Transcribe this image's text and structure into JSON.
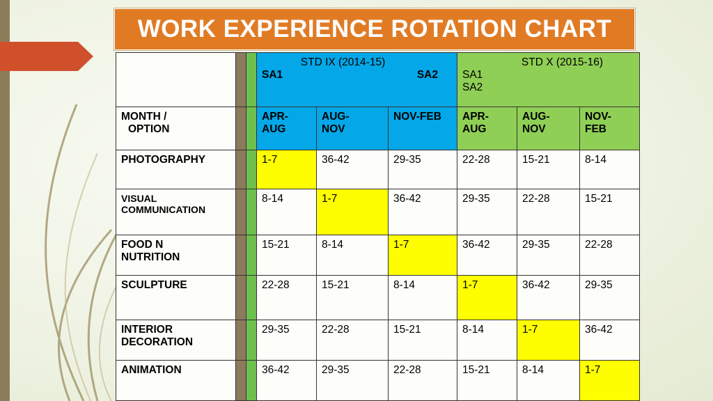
{
  "title": "WORK EXPERIENCE ROTATION CHART",
  "std_ix": {
    "heading": "STD   IX   (2014-15)",
    "sa1": "SA1",
    "sa2": "SA2"
  },
  "std_x": {
    "heading": "STD X  (2015-16)",
    "sa1": "SA1",
    "sa2": "SA2"
  },
  "month_option_line1": "MONTH  /",
  "month_option_line2": "OPTION",
  "periods": [
    [
      "APR-",
      "AUG"
    ],
    [
      "AUG-",
      "NOV"
    ],
    [
      "NOV-FEB",
      ""
    ],
    [
      "APR-",
      "AUG"
    ],
    [
      "AUG-",
      "NOV"
    ],
    [
      "NOV-",
      "FEB"
    ]
  ],
  "rows": [
    {
      "option": [
        "PHOTOGRAPHY"
      ],
      "values": [
        "1-7",
        "36-42",
        "29-35",
        "22-28",
        "15-21",
        "8-14"
      ],
      "highlight": 0
    },
    {
      "option": [
        "VISUAL",
        "COMMUNICATION"
      ],
      "values": [
        "8-14",
        "1-7",
        "36-42",
        "29-35",
        "22-28",
        "15-21"
      ],
      "highlight": 1
    },
    {
      "option": [
        "FOOD N",
        "NUTRITION"
      ],
      "values": [
        "15-21",
        "8-14",
        "1-7",
        "36-42",
        "29-35",
        "22-28"
      ],
      "highlight": 2
    },
    {
      "option": [
        "SCULPTURE"
      ],
      "values": [
        "22-28",
        "15-21",
        "8-14",
        "1-7",
        "36-42",
        "29-35"
      ],
      "highlight": 3
    },
    {
      "option": [
        "INTERIOR",
        "DECORATION"
      ],
      "values": [
        "29-35",
        "22-28",
        "15-21",
        "8-14",
        "1-7",
        "36-42"
      ],
      "highlight": 4
    },
    {
      "option": [
        "ANIMATION"
      ],
      "values": [
        "36-42",
        "29-35",
        "22-28",
        "15-21",
        "8-14",
        "1-7"
      ],
      "highlight": 5
    }
  ],
  "colors": {
    "title_bg": "#e07b24",
    "std_ix_bg": "#04a7e8",
    "std_x_bg": "#90cf56",
    "highlight": "#fefe00",
    "accent_arrow": "#d0502c"
  }
}
